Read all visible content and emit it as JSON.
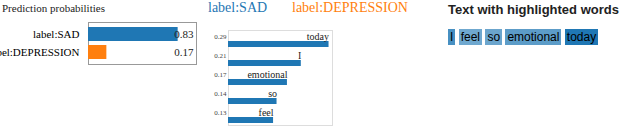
{
  "chart_data": [
    {
      "type": "bar",
      "title": "Prediction probabilities",
      "orientation": "horizontal",
      "categories": [
        "label:SAD",
        "label:DEPRESSION"
      ],
      "values": [
        0.83,
        0.17
      ],
      "colors": [
        "#1f77b4",
        "#ff7f0e"
      ],
      "xlim": [
        0,
        1
      ],
      "data_labels": true,
      "tick_labels": "y"
    },
    {
      "type": "bar",
      "orientation": "horizontal",
      "categories": [
        "today",
        "I",
        "emotional",
        "so",
        "feel"
      ],
      "series": [
        {
          "name": "label:SAD",
          "color": "#1f77b4",
          "values": [
            0.29,
            0.21,
            0.17,
            0.14,
            0.13
          ]
        },
        {
          "name": "label:DEPRESSION",
          "color": "#ff7f0e",
          "values": [
            null,
            null,
            null,
            null,
            null
          ]
        }
      ],
      "xlim": [
        0,
        0.3
      ],
      "data_labels": true,
      "tick_labels": false
    }
  ],
  "text_panel": {
    "title": "Text with highlighted words",
    "tokens": [
      "I",
      "feel",
      "so",
      "emotional",
      "today"
    ],
    "color": "#1f77b4"
  }
}
